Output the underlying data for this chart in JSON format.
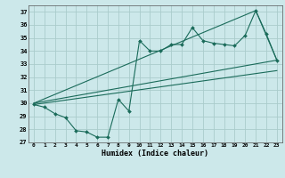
{
  "xlabel": "Humidex (Indice chaleur)",
  "bg_color": "#cce8ea",
  "grid_color": "#aacccc",
  "line_color": "#1a6b5a",
  "xlim": [
    -0.5,
    23.5
  ],
  "ylim": [
    27,
    37.5
  ],
  "yticks": [
    27,
    28,
    29,
    30,
    31,
    32,
    33,
    34,
    35,
    36,
    37
  ],
  "xticks": [
    0,
    1,
    2,
    3,
    4,
    5,
    6,
    7,
    8,
    9,
    10,
    11,
    12,
    13,
    14,
    15,
    16,
    17,
    18,
    19,
    20,
    21,
    22,
    23
  ],
  "main_x": [
    0,
    1,
    2,
    3,
    4,
    5,
    6,
    7,
    8,
    9,
    10,
    11,
    12,
    13,
    14,
    15,
    16,
    17,
    18,
    19,
    20,
    21,
    22,
    23
  ],
  "main_y": [
    29.9,
    29.7,
    29.2,
    28.9,
    27.9,
    27.8,
    27.4,
    27.4,
    30.3,
    29.4,
    34.8,
    34.0,
    34.0,
    34.5,
    34.5,
    35.8,
    34.8,
    34.6,
    34.5,
    34.4,
    35.2,
    37.1,
    35.3,
    33.3
  ],
  "line1_x": [
    0,
    23
  ],
  "line1_y": [
    30.0,
    33.3
  ],
  "line2_x": [
    0,
    23
  ],
  "line2_y": [
    29.9,
    32.5
  ],
  "line3_x": [
    0,
    21,
    23
  ],
  "line3_y": [
    30.0,
    37.1,
    33.3
  ]
}
